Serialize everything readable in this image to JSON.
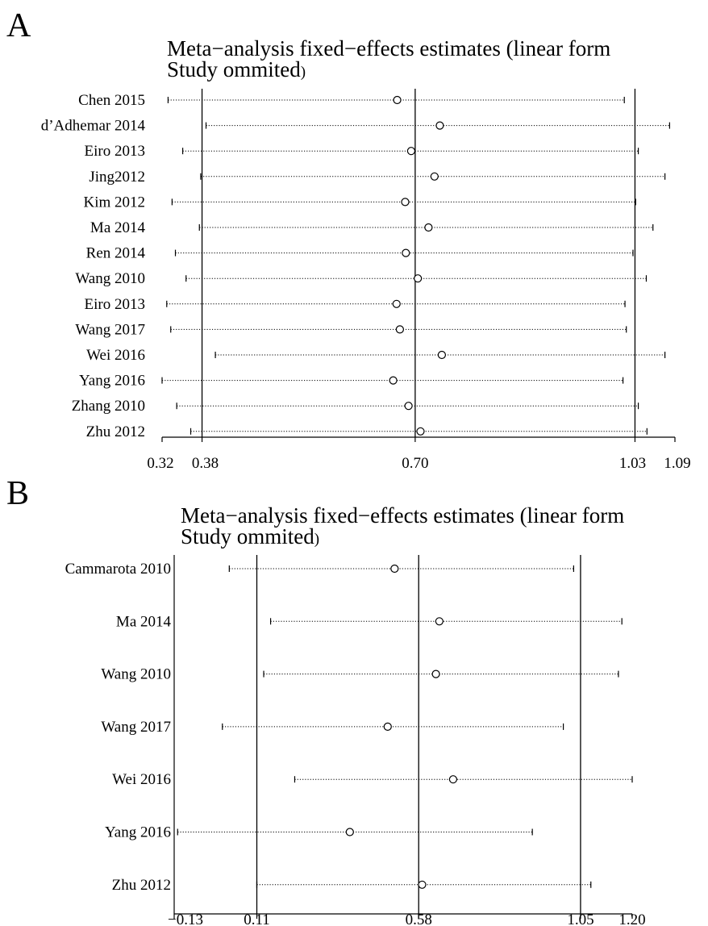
{
  "chart_data": [
    {
      "type": "scatter",
      "panel_label": "A",
      "title_line1": "Meta−analysis fixed−effects estimates (linear form",
      "title_line2": "Study ommited",
      "title_paren": ")",
      "xlim": [
        0.32,
        1.09
      ],
      "xticks": [
        0.32,
        0.38,
        0.7,
        1.03,
        1.09
      ],
      "xtick_labels": [
        "0.32",
        "0.38",
        "0.70",
        "1.03",
        "1.09"
      ],
      "reference_lines": [
        0.38,
        0.7,
        1.03
      ],
      "studies": [
        {
          "label": "Chen 2015",
          "estimate": 0.673,
          "lower": 0.329,
          "upper": 1.014
        },
        {
          "label": "d’Adhemar 2014",
          "estimate": 0.737,
          "lower": 0.386,
          "upper": 1.082
        },
        {
          "label": "Eiro 2013",
          "estimate": 0.694,
          "lower": 0.351,
          "upper": 1.035
        },
        {
          "label": "Jing2012",
          "estimate": 0.729,
          "lower": 0.378,
          "upper": 1.075
        },
        {
          "label": "Kim 2012",
          "estimate": 0.685,
          "lower": 0.335,
          "upper": 1.031
        },
        {
          "label": "Ma 2014",
          "estimate": 0.72,
          "lower": 0.376,
          "upper": 1.057
        },
        {
          "label": "Ren 2014",
          "estimate": 0.686,
          "lower": 0.34,
          "upper": 1.027
        },
        {
          "label": "Wang 2010",
          "estimate": 0.704,
          "lower": 0.356,
          "upper": 1.047
        },
        {
          "label": "Eiro 2013",
          "estimate": 0.672,
          "lower": 0.327,
          "upper": 1.015
        },
        {
          "label": "Wang 2017",
          "estimate": 0.677,
          "lower": 0.333,
          "upper": 1.017
        },
        {
          "label": "Wei 2016",
          "estimate": 0.74,
          "lower": 0.4,
          "upper": 1.075
        },
        {
          "label": "Yang 2016",
          "estimate": 0.667,
          "lower": 0.32,
          "upper": 1.012
        },
        {
          "label": "Zhang 2010",
          "estimate": 0.69,
          "lower": 0.342,
          "upper": 1.035
        },
        {
          "label": "Zhu 2012",
          "estimate": 0.708,
          "lower": 0.363,
          "upper": 1.048
        }
      ]
    },
    {
      "type": "scatter",
      "panel_label": "B",
      "title_line1": "Meta−analysis fixed−effects estimates (linear form",
      "title_line2": "Study ommited",
      "title_paren": ")",
      "xlim": [
        -0.13,
        1.2
      ],
      "xticks": [
        -0.13,
        0.11,
        0.58,
        1.05,
        1.2
      ],
      "xtick_labels": [
        "−0.13",
        "0.11",
        "0.58",
        "1.05",
        "1.20"
      ],
      "reference_lines": [
        0.11,
        0.58,
        1.05
      ],
      "studies": [
        {
          "label": "Cammarota 2010",
          "estimate": 0.51,
          "lower": 0.03,
          "upper": 1.03
        },
        {
          "label": "Ma 2014",
          "estimate": 0.64,
          "lower": 0.15,
          "upper": 1.17
        },
        {
          "label": "Wang 2010",
          "estimate": 0.63,
          "lower": 0.13,
          "upper": 1.16
        },
        {
          "label": "Wang 2017",
          "estimate": 0.49,
          "lower": 0.01,
          "upper": 1.0
        },
        {
          "label": "Wei 2016",
          "estimate": 0.68,
          "lower": 0.22,
          "upper": 1.2
        },
        {
          "label": "Yang 2016",
          "estimate": 0.38,
          "lower": -0.12,
          "upper": 0.91
        },
        {
          "label": "Zhu 2012",
          "estimate": 0.59,
          "lower": 0.11,
          "upper": 1.08
        }
      ]
    }
  ]
}
